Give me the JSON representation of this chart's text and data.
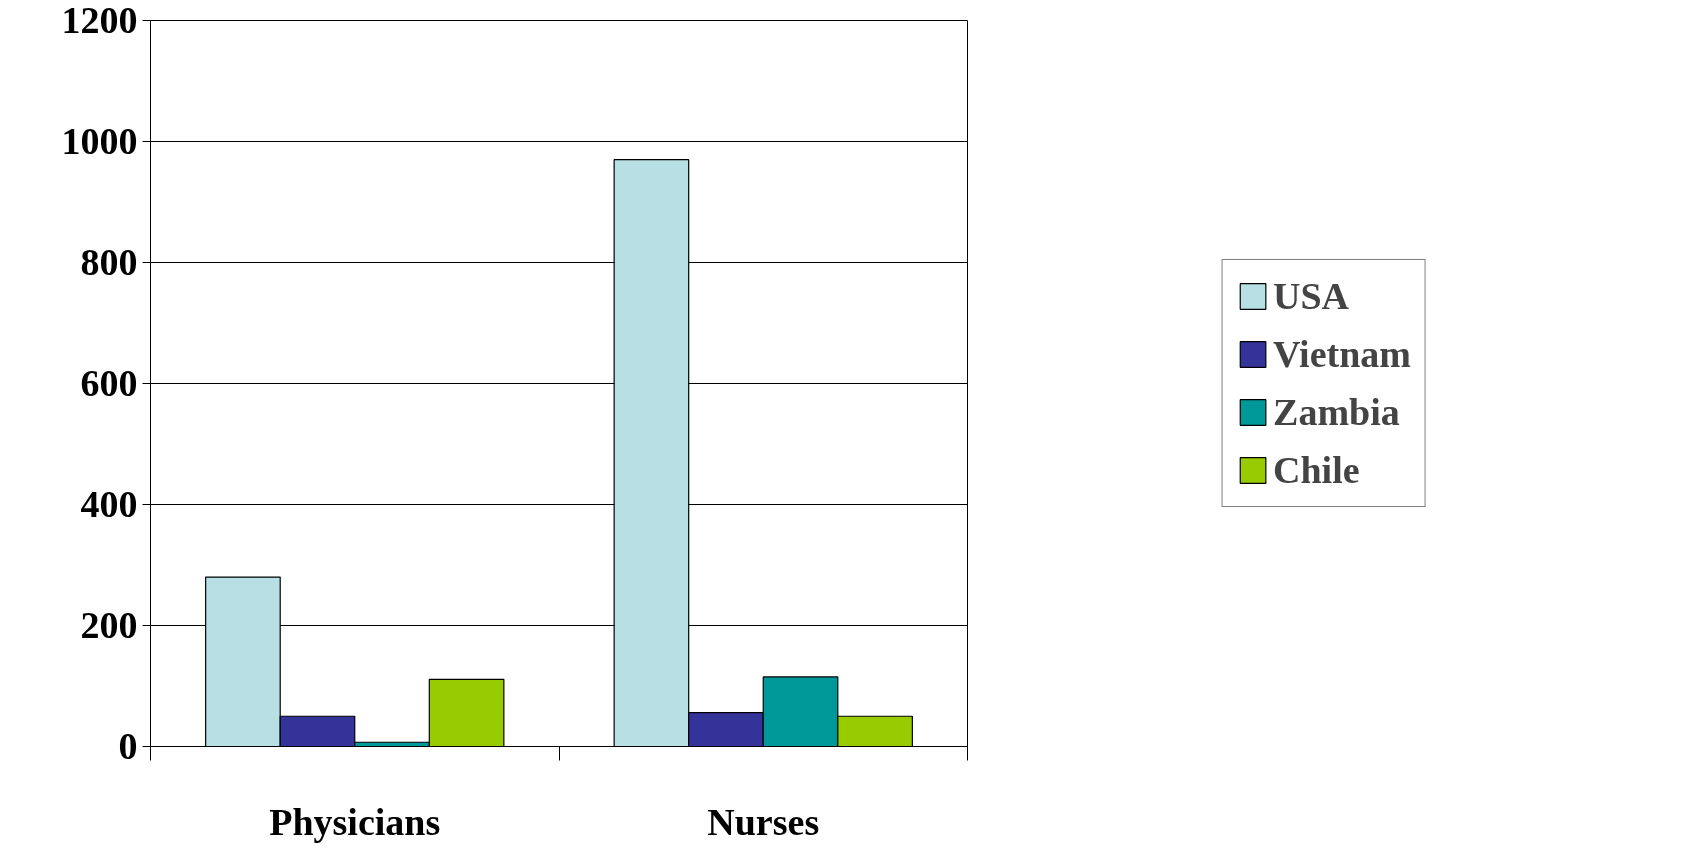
{
  "chart_data": {
    "type": "bar",
    "categories": [
      "Physicians",
      "Nurses"
    ],
    "series": [
      {
        "name": "USA",
        "color": "#b8dfe3",
        "values": [
          280,
          970
        ]
      },
      {
        "name": "Vietnam",
        "color": "#333399",
        "values": [
          50,
          56
        ]
      },
      {
        "name": "Zambia",
        "color": "#009999",
        "values": [
          7,
          115
        ]
      },
      {
        "name": "Chile",
        "color": "#99cc00",
        "values": [
          111,
          50
        ]
      }
    ],
    "ylim": [
      0,
      1200
    ],
    "yticks": [
      0,
      200,
      400,
      600,
      800,
      1000,
      1200
    ],
    "grid": "y",
    "legend": "right"
  }
}
